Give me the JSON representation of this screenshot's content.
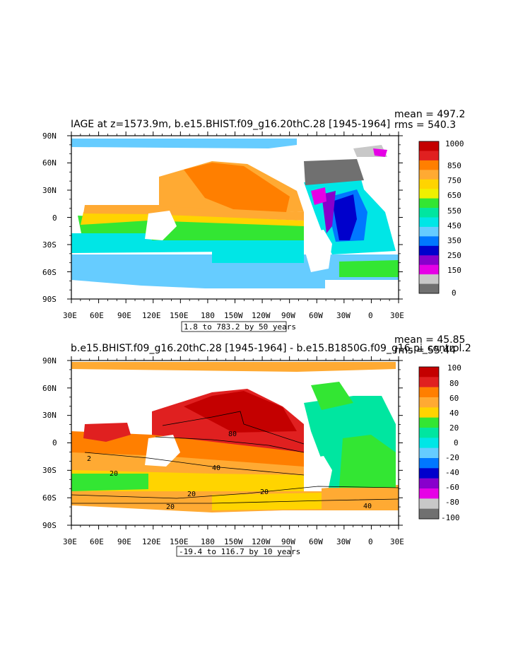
{
  "panels": [
    {
      "title": "IAGE at z=1573.9m, b.e15.BHIST.f09_g16.20thC.28 [1945-1964]",
      "mean_text": "mean = 497.2",
      "rms_text": "rms = 540.3",
      "range_text": "1.8 to 783.2 by 50 years",
      "legend_labels": [
        "1000",
        "850",
        "750",
        "650",
        "550",
        "450",
        "350",
        "250",
        "150",
        "0"
      ],
      "legend_colors": [
        "#c40000",
        "#e02020",
        "#ff7f00",
        "#ffaa33",
        "#ffd400",
        "#f0f000",
        "#33e633",
        "#00e6a0",
        "#00e6e6",
        "#66ccff",
        "#0077ff",
        "#0000cc",
        "#8800cc",
        "#e600e6",
        "#c8c8c8",
        "#707070"
      ]
    },
    {
      "title": "b.e15.BHIST.f09_g16.20thC.28 [1945-1964] - b.e15.B1850G.f09_g16.pi_control.2",
      "mean_text": "mean = 45.85",
      "rms_text": "rms = 55.44",
      "range_text": "-19.4 to 116.7 by 10 years",
      "legend_labels": [
        "100",
        "80",
        "60",
        "40",
        "20",
        "0",
        "-20",
        "-40",
        "-60",
        "-80",
        "-100"
      ],
      "legend_colors": [
        "#c40000",
        "#e02020",
        "#ff7f00",
        "#ffaa33",
        "#ffd400",
        "#33e633",
        "#00e6a0",
        "#00e6e6",
        "#66ccff",
        "#0077ff",
        "#0000cc",
        "#8800cc",
        "#e600e6",
        "#c8c8c8",
        "#707070"
      ],
      "contour_labels": [
        "80",
        "40",
        "20",
        "20",
        "20",
        "40",
        "20",
        "2"
      ]
    }
  ],
  "axes": {
    "lat_labels": [
      "90N",
      "60N",
      "30N",
      "0",
      "30S",
      "60S",
      "90S"
    ],
    "lon_labels": [
      "30E",
      "60E",
      "90E",
      "120E",
      "150E",
      "180",
      "150W",
      "120W",
      "90W",
      "60W",
      "30W",
      "0",
      "30E"
    ]
  }
}
